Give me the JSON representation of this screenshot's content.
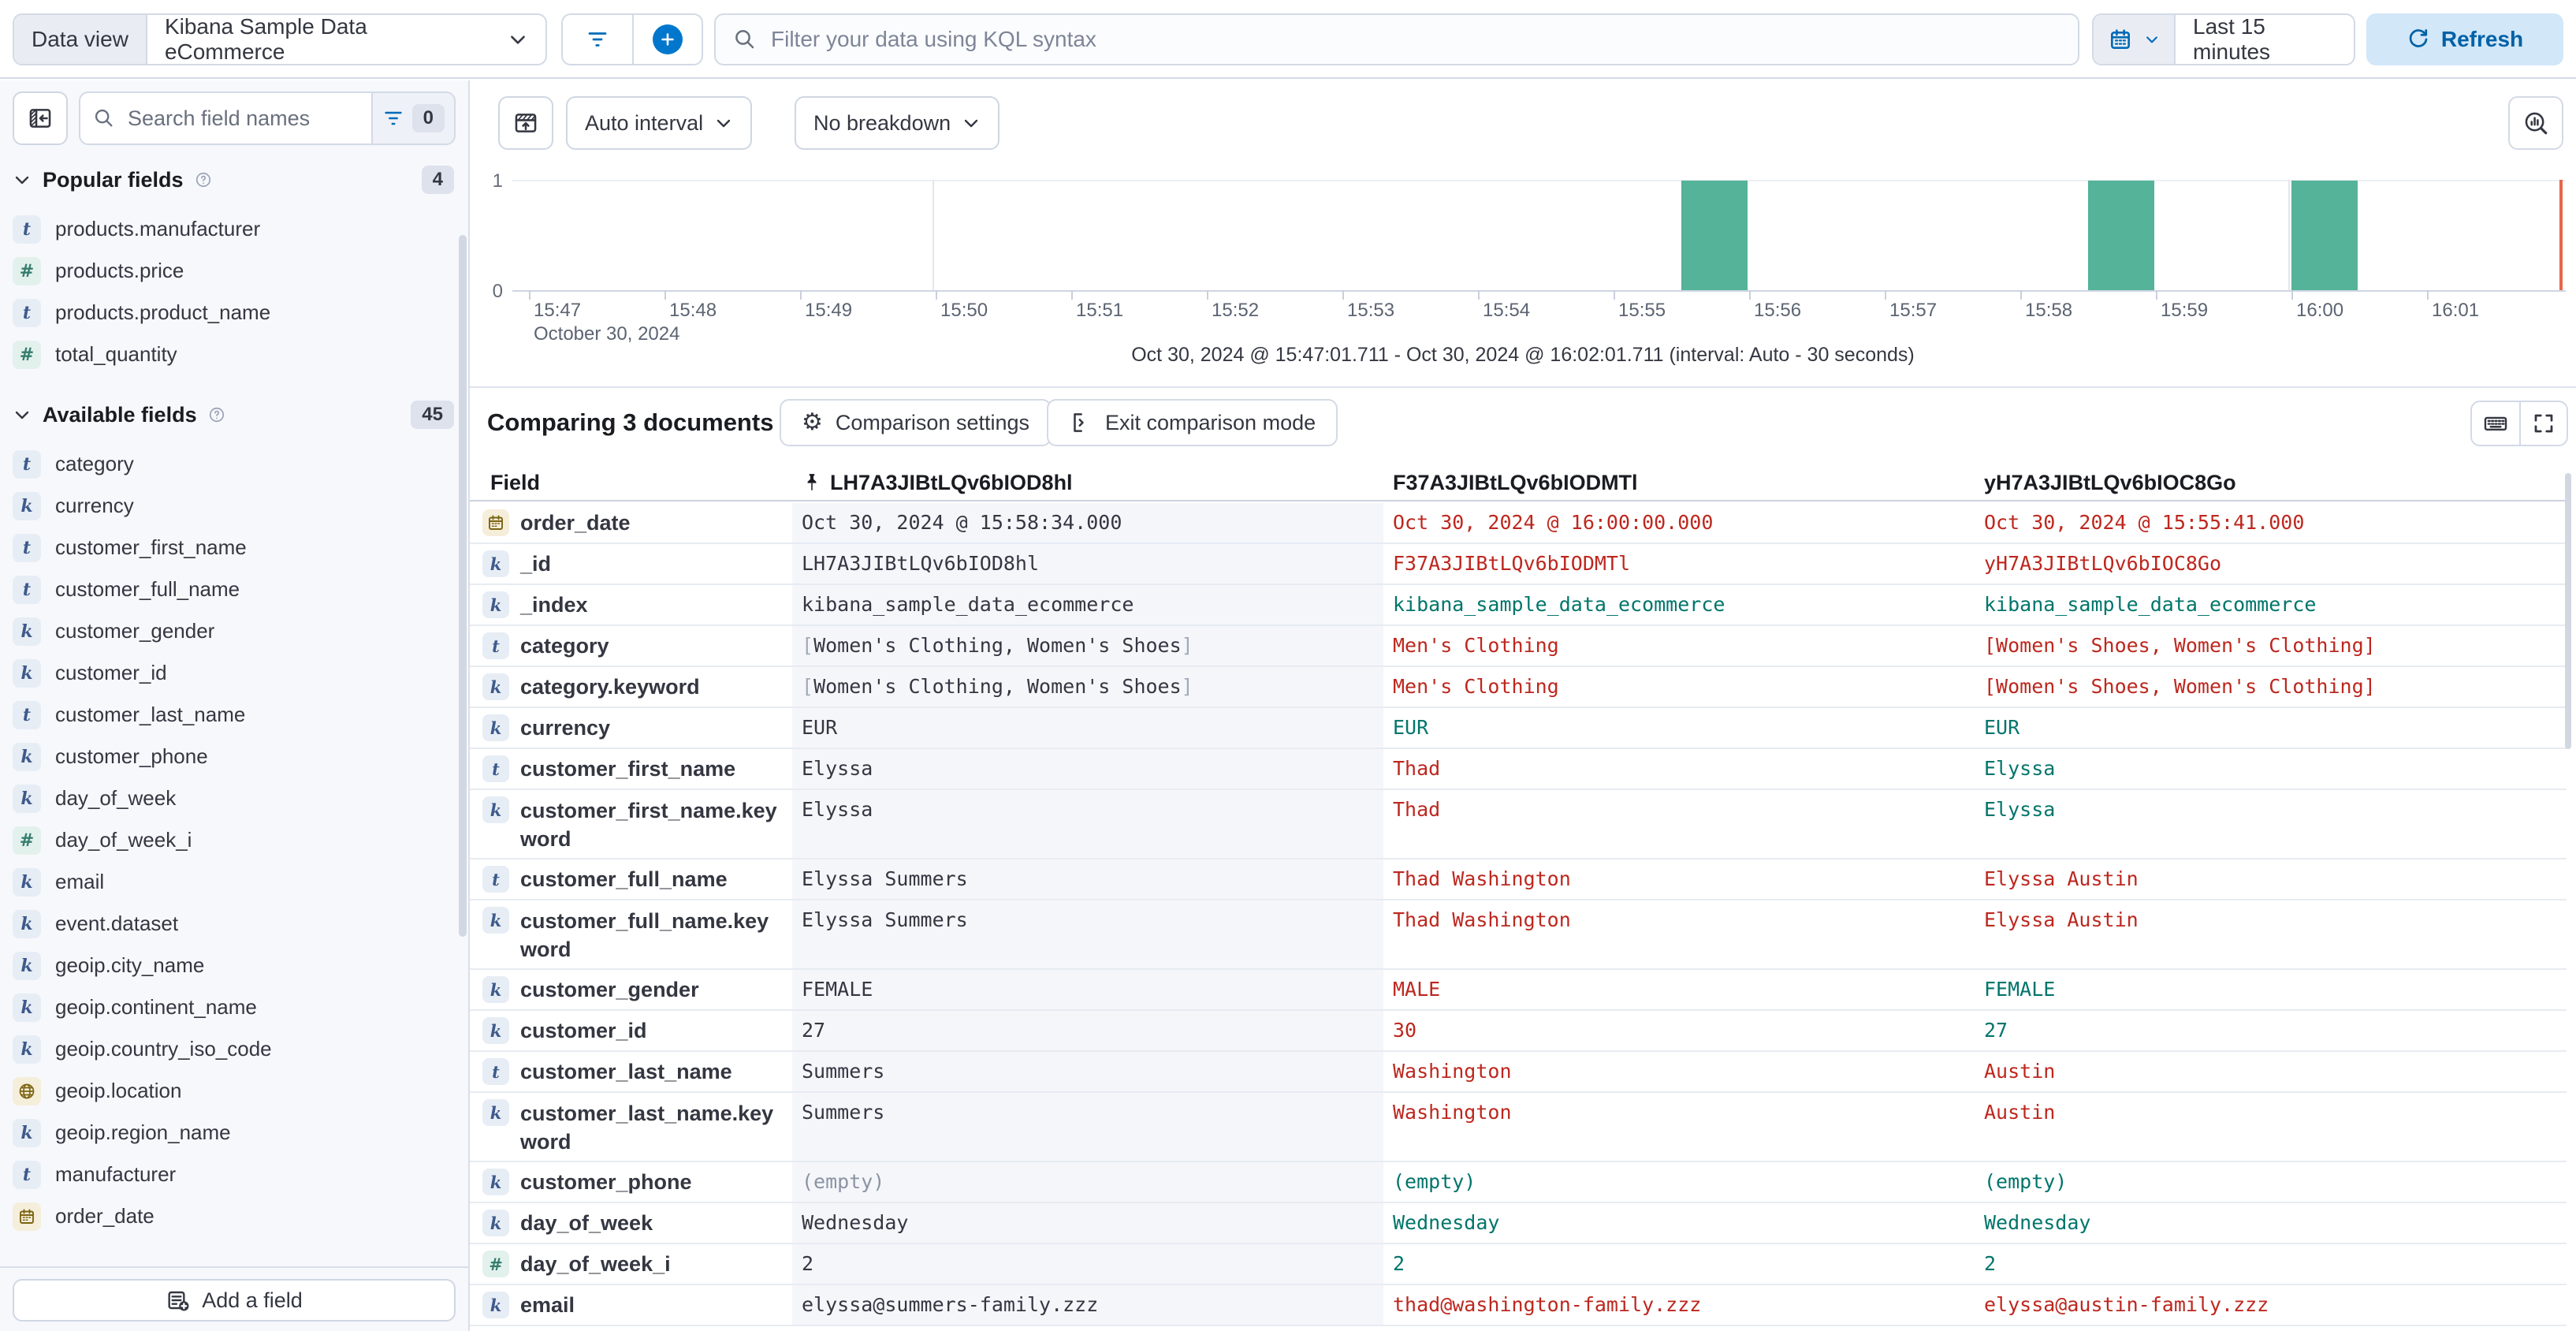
{
  "top_bar": {
    "data_view_label": "Data view",
    "data_view_value": "Kibana Sample Data eCommerce",
    "kql_placeholder": "Filter your data using KQL syntax",
    "time_range": "Last 15 minutes",
    "refresh_label": "Refresh"
  },
  "sidebar": {
    "search_placeholder": "Search field names",
    "filter_count": "0",
    "popular": {
      "label": "Popular fields",
      "count": "4",
      "items": [
        {
          "type": "text",
          "name": "products.manufacturer"
        },
        {
          "type": "number",
          "name": "products.price"
        },
        {
          "type": "text",
          "name": "products.product_name"
        },
        {
          "type": "number",
          "name": "total_quantity"
        }
      ]
    },
    "available": {
      "label": "Available fields",
      "count": "45",
      "items": [
        {
          "type": "text",
          "name": "category"
        },
        {
          "type": "keyword",
          "name": "currency"
        },
        {
          "type": "text",
          "name": "customer_first_name"
        },
        {
          "type": "text",
          "name": "customer_full_name"
        },
        {
          "type": "keyword",
          "name": "customer_gender"
        },
        {
          "type": "keyword",
          "name": "customer_id"
        },
        {
          "type": "text",
          "name": "customer_last_name"
        },
        {
          "type": "keyword",
          "name": "customer_phone"
        },
        {
          "type": "keyword",
          "name": "day_of_week"
        },
        {
          "type": "number",
          "name": "day_of_week_i"
        },
        {
          "type": "keyword",
          "name": "email"
        },
        {
          "type": "keyword",
          "name": "event.dataset"
        },
        {
          "type": "keyword",
          "name": "geoip.city_name"
        },
        {
          "type": "keyword",
          "name": "geoip.continent_name"
        },
        {
          "type": "keyword",
          "name": "geoip.country_iso_code"
        },
        {
          "type": "geo",
          "name": "geoip.location"
        },
        {
          "type": "keyword",
          "name": "geoip.region_name"
        },
        {
          "type": "text",
          "name": "manufacturer"
        },
        {
          "type": "date",
          "name": "order_date"
        }
      ]
    },
    "add_field_label": "Add a field"
  },
  "chart_controls": {
    "interval_label": "Auto interval",
    "breakdown_label": "No breakdown"
  },
  "chart_data": {
    "type": "bar",
    "x_ticks": [
      "15:47",
      "15:48",
      "15:49",
      "15:50",
      "15:51",
      "15:52",
      "15:53",
      "15:54",
      "15:55",
      "15:56",
      "15:57",
      "15:58",
      "15:59",
      "16:00",
      "16:01"
    ],
    "x_date_label": "October 30, 2024",
    "y_ticks": [
      "1",
      "0"
    ],
    "ylim": [
      0,
      1
    ],
    "bars": [
      {
        "start": "15:55:30",
        "value": 1
      },
      {
        "start": "15:58:30",
        "value": 1
      },
      {
        "start": "16:00:00",
        "value": 1
      }
    ],
    "bar_color": "#54b399",
    "major_gridlines": [
      "15:50",
      "16:00"
    ],
    "now_marker": "16:02",
    "now_marker_color": "#e7664c",
    "caption": "Oct 30, 2024 @ 15:47:01.711 - Oct 30, 2024 @ 16:02:01.711 (interval: Auto - 30 seconds)"
  },
  "comparison": {
    "title": "Comparing 3 documents",
    "settings_label": "Comparison settings",
    "exit_label": "Exit comparison mode"
  },
  "table": {
    "field_header": "Field",
    "docs": [
      "LH7A3JIBtLQv6bIOD8hl",
      "F37A3JIBtLQv6bIODMTl",
      "yH7A3JIBtLQv6bIOC8Go"
    ],
    "diff_color": "#bd271e",
    "match_color": "#00756b",
    "rows": [
      {
        "field": "order_date",
        "type": "date",
        "base": "Oct 30, 2024 @ 15:58:34.000",
        "doc2": {
          "value": "Oct 30, 2024 @ 16:00:00.000",
          "state": "diff"
        },
        "doc3": {
          "value": "Oct 30, 2024 @ 15:55:41.000",
          "state": "diff"
        }
      },
      {
        "field": "_id",
        "type": "keyword",
        "base": "LH7A3JIBtLQv6bIOD8hl",
        "doc2": {
          "value": "F37A3JIBtLQv6bIODMTl",
          "state": "diff"
        },
        "doc3": {
          "value": "yH7A3JIBtLQv6bIOC8Go",
          "state": "diff"
        }
      },
      {
        "field": "_index",
        "type": "keyword",
        "base": "kibana_sample_data_ecommerce",
        "doc2": {
          "value": "kibana_sample_data_ecommerce",
          "state": "match"
        },
        "doc3": {
          "value": "kibana_sample_data_ecommerce",
          "state": "match"
        }
      },
      {
        "field": "category",
        "type": "text",
        "base": "[Women's Clothing, Women's Shoes]",
        "doc2": {
          "value": "Men's Clothing",
          "state": "diff"
        },
        "doc3": {
          "value": "[Women's Shoes, Women's Clothing]",
          "state": "diff"
        }
      },
      {
        "field": "category.keyword",
        "type": "keyword",
        "base": "[Women's Clothing, Women's Shoes]",
        "doc2": {
          "value": "Men's Clothing",
          "state": "diff"
        },
        "doc3": {
          "value": "[Women's Shoes, Women's Clothing]",
          "state": "diff"
        }
      },
      {
        "field": "currency",
        "type": "keyword",
        "base": "EUR",
        "doc2": {
          "value": "EUR",
          "state": "match"
        },
        "doc3": {
          "value": "EUR",
          "state": "match"
        }
      },
      {
        "field": "customer_first_name",
        "type": "text",
        "base": "Elyssa",
        "doc2": {
          "value": "Thad",
          "state": "diff"
        },
        "doc3": {
          "value": "Elyssa",
          "state": "match"
        }
      },
      {
        "field": "customer_first_name.keyword",
        "type": "keyword",
        "wrap": true,
        "base": "Elyssa",
        "doc2": {
          "value": "Thad",
          "state": "diff"
        },
        "doc3": {
          "value": "Elyssa",
          "state": "match"
        }
      },
      {
        "field": "customer_full_name",
        "type": "text",
        "base": "Elyssa Summers",
        "doc2": {
          "value": "Thad Washington",
          "state": "diff"
        },
        "doc3": {
          "value": "Elyssa Austin",
          "state": "diff"
        }
      },
      {
        "field": "customer_full_name.keyword",
        "type": "keyword",
        "wrap": true,
        "base": "Elyssa Summers",
        "doc2": {
          "value": "Thad Washington",
          "state": "diff"
        },
        "doc3": {
          "value": "Elyssa Austin",
          "state": "diff"
        }
      },
      {
        "field": "customer_gender",
        "type": "keyword",
        "base": "FEMALE",
        "doc2": {
          "value": "MALE",
          "state": "diff"
        },
        "doc3": {
          "value": "FEMALE",
          "state": "match"
        }
      },
      {
        "field": "customer_id",
        "type": "keyword",
        "base": "27",
        "doc2": {
          "value": "30",
          "state": "diff"
        },
        "doc3": {
          "value": "27",
          "state": "match"
        }
      },
      {
        "field": "customer_last_name",
        "type": "text",
        "base": "Summers",
        "doc2": {
          "value": "Washington",
          "state": "diff"
        },
        "doc3": {
          "value": "Austin",
          "state": "diff"
        }
      },
      {
        "field": "customer_last_name.keyword",
        "type": "keyword",
        "wrap": true,
        "base": "Summers",
        "doc2": {
          "value": "Washington",
          "state": "diff"
        },
        "doc3": {
          "value": "Austin",
          "state": "diff"
        }
      },
      {
        "field": "customer_phone",
        "type": "keyword",
        "base": "(empty)",
        "base_muted": true,
        "doc2": {
          "value": "(empty)",
          "state": "match"
        },
        "doc3": {
          "value": "(empty)",
          "state": "match"
        }
      },
      {
        "field": "day_of_week",
        "type": "keyword",
        "base": "Wednesday",
        "doc2": {
          "value": "Wednesday",
          "state": "match"
        },
        "doc3": {
          "value": "Wednesday",
          "state": "match"
        }
      },
      {
        "field": "day_of_week_i",
        "type": "number",
        "base": "2",
        "doc2": {
          "value": "2",
          "state": "match"
        },
        "doc3": {
          "value": "2",
          "state": "match"
        }
      },
      {
        "field": "email",
        "type": "keyword",
        "base": "elyssa@summers-family.zzz",
        "doc2": {
          "value": "thad@washington-family.zzz",
          "state": "diff"
        },
        "doc3": {
          "value": "elyssa@austin-family.zzz",
          "state": "diff"
        }
      }
    ]
  }
}
